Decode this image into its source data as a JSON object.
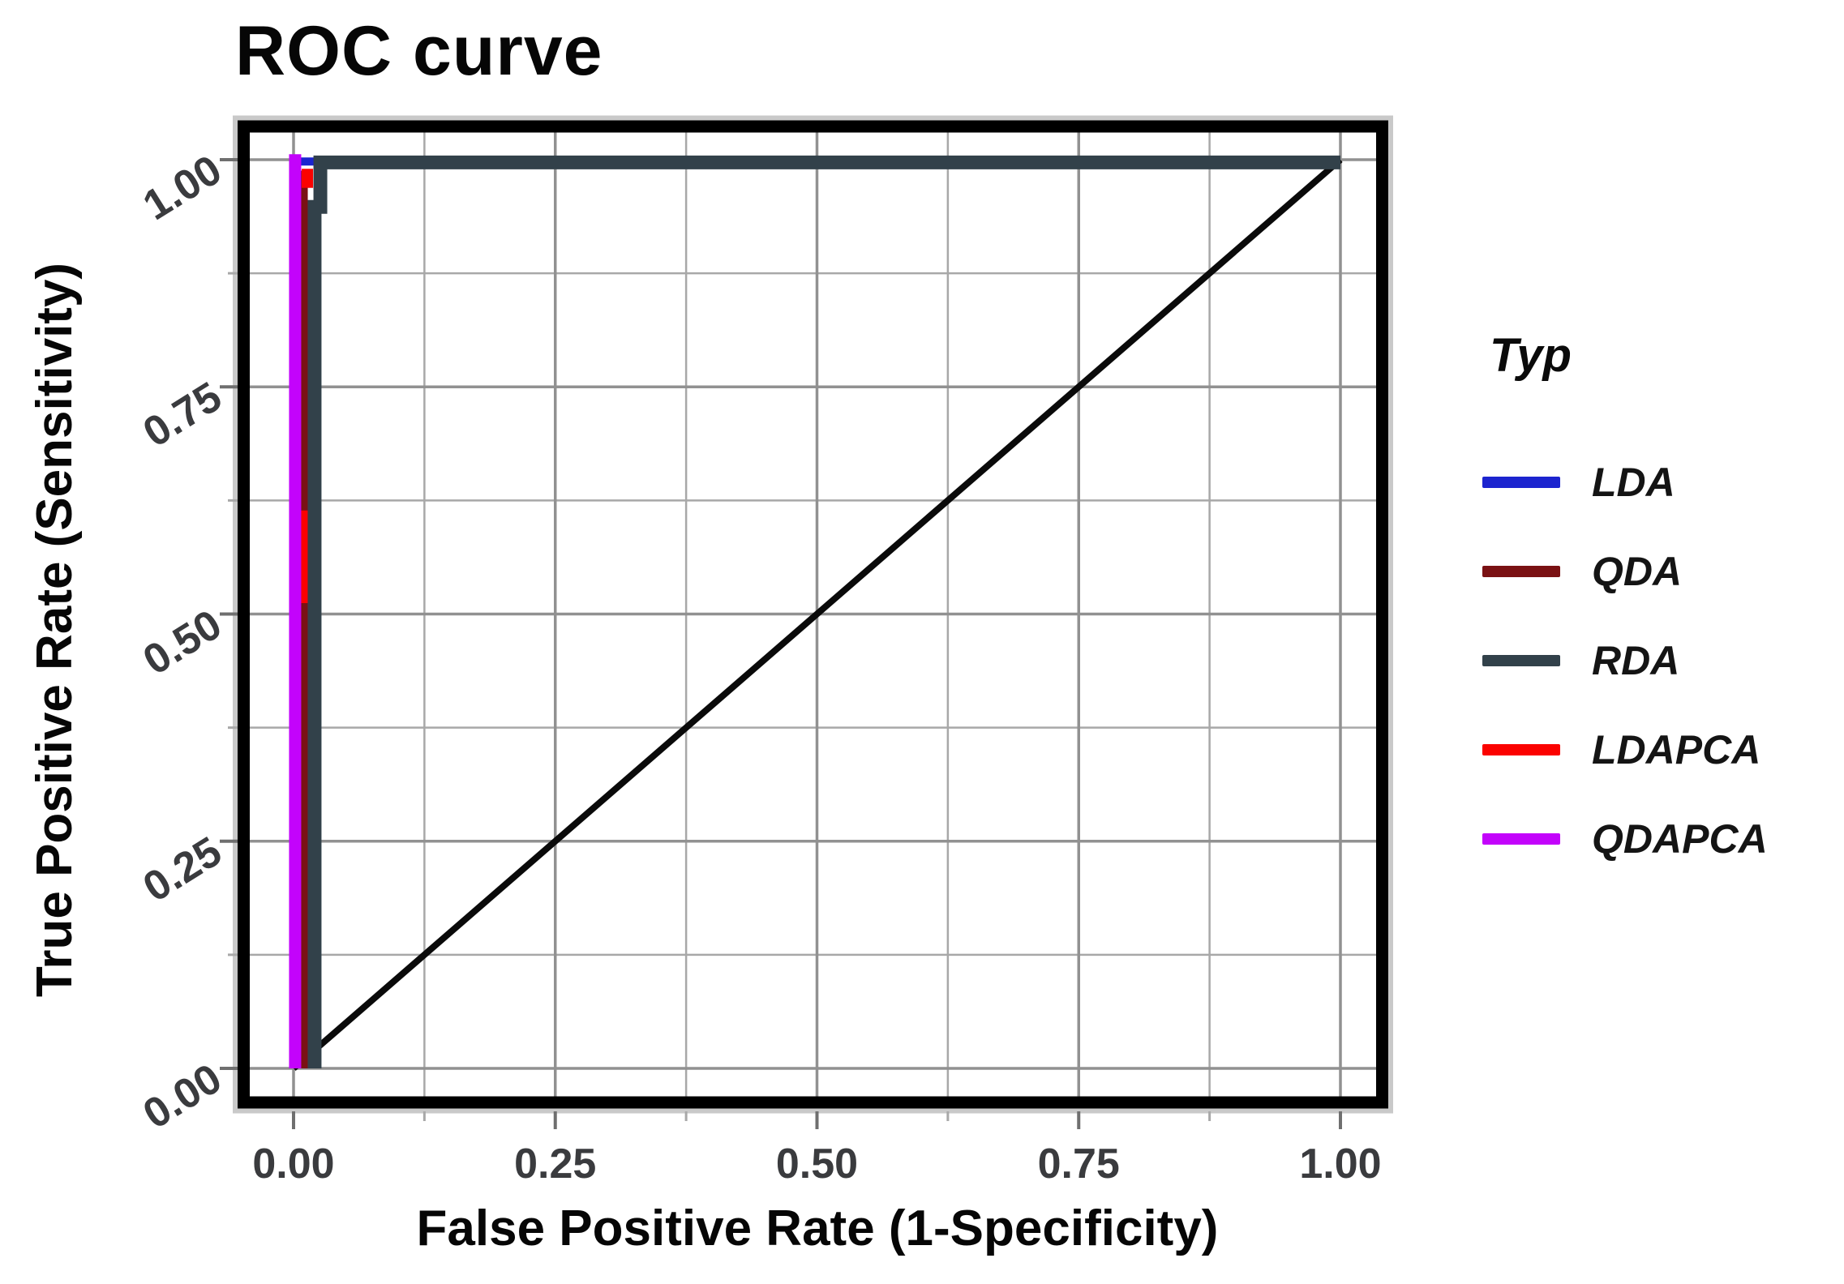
{
  "title": "ROC curve",
  "axes": {
    "x_title": "False Positive Rate (1-Specificity)",
    "y_title": "True Positive Rate (Sensitivity)",
    "x_tick_labels": [
      "0.00",
      "0.25",
      "0.50",
      "0.75",
      "1.00"
    ],
    "y_tick_labels": [
      "0.00",
      "0.25",
      "0.50",
      "0.75",
      "1.00"
    ]
  },
  "legend": {
    "title": "Typ",
    "entries": [
      {
        "label": "LDA",
        "color": "#1c24cf"
      },
      {
        "label": "QDA",
        "color": "#7a1113"
      },
      {
        "label": "RDA",
        "color": "#32414a"
      },
      {
        "label": "LDAPCA",
        "color": "#fb0200"
      },
      {
        "label": "QDAPCA",
        "color": "#c303fb"
      }
    ]
  },
  "chart_data": {
    "type": "line",
    "title": "ROC curve",
    "xlabel": "False Positive Rate (1-Specificity)",
    "ylabel": "True Positive Rate (Sensitivity)",
    "xlim": [
      0,
      1
    ],
    "ylim": [
      0,
      1
    ],
    "major_ticks": [
      0,
      0.25,
      0.5,
      0.75,
      1.0
    ],
    "minor_ticks": [
      0.125,
      0.375,
      0.625,
      0.875
    ],
    "grid": "on",
    "legend_position": "right",
    "reference_line": {
      "name": "chance-diagonal",
      "points": [
        [
          0,
          0
        ],
        [
          1,
          1
        ]
      ],
      "color": "#0a0a0a"
    },
    "series": [
      {
        "name": "LDA",
        "color": "#1c24cf",
        "points": [
          [
            0,
            0
          ],
          [
            0.002,
            0
          ],
          [
            0.002,
            1
          ],
          [
            1,
            1
          ]
        ]
      },
      {
        "name": "QDA",
        "color": "#7a1113",
        "points": [
          [
            0,
            0
          ],
          [
            0.01,
            0
          ],
          [
            0.01,
            1
          ],
          [
            1,
            1
          ]
        ]
      },
      {
        "name": "RDA",
        "color": "#32414a",
        "points": [
          [
            0,
            0
          ],
          [
            0.02,
            0
          ],
          [
            0.02,
            0.95
          ],
          [
            0.026,
            0.95
          ],
          [
            0.026,
            1
          ],
          [
            1,
            1
          ]
        ]
      },
      {
        "name": "LDAPCA",
        "color": "#fb0200",
        "points": [
          [
            0,
            0
          ],
          [
            0.01,
            0
          ],
          [
            0.01,
            1
          ],
          [
            1,
            1
          ]
        ]
      },
      {
        "name": "QDAPCA",
        "color": "#c303fb",
        "points": [
          [
            0,
            0
          ],
          [
            0.002,
            0
          ],
          [
            0.002,
            1
          ],
          [
            1,
            1
          ]
        ]
      }
    ],
    "paint": [
      {
        "name": "chance-diagonal",
        "color": "#0a0a0a",
        "width": 8,
        "points": [
          [
            0,
            0
          ],
          [
            1,
            1
          ]
        ]
      },
      {
        "name": "series-LDA",
        "color": "#1c24cf",
        "width": 10,
        "points": [
          [
            0.0015,
            0
          ],
          [
            0.0015,
            0.998
          ],
          [
            1,
            0.998
          ]
        ]
      },
      {
        "name": "series-QDA",
        "color": "#7a1113",
        "width": 9,
        "points": [
          [
            0.0101,
            0
          ],
          [
            0.0101,
            0.988
          ]
        ]
      },
      {
        "name": "series-LDAPCA-mid",
        "color": "#fb0200",
        "width": 9,
        "points": [
          [
            0.0101,
            0.512
          ],
          [
            0.0101,
            0.614
          ]
        ]
      },
      {
        "name": "series-RDA",
        "color": "#32414a",
        "width": 17,
        "points": [
          [
            0.0201,
            0
          ],
          [
            0.0201,
            0.948
          ],
          [
            0.0256,
            0.948
          ],
          [
            0.0256,
            0.997
          ],
          [
            1,
            0.997
          ]
        ]
      },
      {
        "name": "series-LDAPCA-top",
        "color": "#fb0200",
        "width": 14,
        "points": [
          [
            0.0132,
            0.969
          ],
          [
            0.0132,
            0.99
          ]
        ]
      },
      {
        "name": "series-QDAPCA",
        "color": "#c303fb",
        "width": 15,
        "points": [
          [
            0.0015,
            0
          ],
          [
            0.0015,
            1.006
          ]
        ]
      }
    ],
    "style": {
      "grid_major_color": "#919191",
      "grid_minor_color": "#a8a8a8",
      "panel_border_color": "#000000",
      "panel_halo_color": "#c9c9c9",
      "tick_color": "#6f6f6f",
      "tick_label_color": "#3a3b3e",
      "background": "#ffffff"
    }
  }
}
